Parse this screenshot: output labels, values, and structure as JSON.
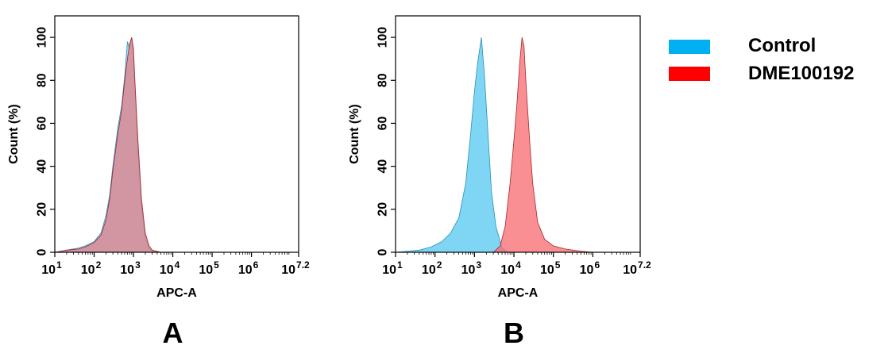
{
  "chart_data": [
    {
      "type": "area",
      "panel_label": "A",
      "xlabel": "APC-A",
      "ylabel": "Count  (%)",
      "x_scale": "log",
      "xlim": [
        10,
        15848932
      ],
      "ylim": [
        0,
        110
      ],
      "x_ticks": [
        {
          "value": 10,
          "base": "10",
          "exp": "1"
        },
        {
          "value": 100,
          "base": "10",
          "exp": "2"
        },
        {
          "value": 1000,
          "base": "10",
          "exp": "3"
        },
        {
          "value": 10000,
          "base": "10",
          "exp": "4"
        },
        {
          "value": 100000,
          "base": "10",
          "exp": "5"
        },
        {
          "value": 1000000,
          "base": "10",
          "exp": "6"
        },
        {
          "value": 15848932,
          "base": "10",
          "exp": "7.2"
        }
      ],
      "y_ticks": [
        0,
        20,
        40,
        60,
        80,
        100
      ],
      "series": [
        {
          "name": "Control",
          "color": "#54C8F0",
          "x": [
            10,
            20,
            40,
            60,
            100,
            150,
            200,
            250,
            300,
            400,
            500,
            600,
            700,
            800,
            900,
            1000,
            1100,
            1300,
            1600,
            2000,
            2500,
            3000,
            5000
          ],
          "y": [
            0,
            1,
            2,
            3,
            5,
            9,
            17,
            27,
            40,
            58,
            68,
            82,
            98,
            95,
            100,
            92,
            75,
            48,
            22,
            7,
            2,
            0.5,
            0
          ]
        },
        {
          "name": "DME100192",
          "color": "#F76A6E",
          "x": [
            10,
            20,
            40,
            60,
            100,
            150,
            200,
            250,
            300,
            400,
            500,
            600,
            700,
            800,
            900,
            1000,
            1100,
            1300,
            1600,
            2000,
            2500,
            3000,
            5000
          ],
          "y": [
            0,
            1,
            1.5,
            2.5,
            4.5,
            8,
            15,
            25,
            38,
            55,
            66,
            80,
            90,
            97,
            100,
            95,
            78,
            52,
            25,
            9,
            3,
            1,
            0
          ]
        }
      ]
    },
    {
      "type": "area",
      "panel_label": "B",
      "xlabel": "APC-A",
      "ylabel": "Count  (%)",
      "x_scale": "log",
      "xlim": [
        10,
        15848932
      ],
      "ylim": [
        0,
        110
      ],
      "x_ticks": [
        {
          "value": 10,
          "base": "10",
          "exp": "1"
        },
        {
          "value": 100,
          "base": "10",
          "exp": "2"
        },
        {
          "value": 1000,
          "base": "10",
          "exp": "3"
        },
        {
          "value": 10000,
          "base": "10",
          "exp": "4"
        },
        {
          "value": 100000,
          "base": "10",
          "exp": "5"
        },
        {
          "value": 1000000,
          "base": "10",
          "exp": "6"
        },
        {
          "value": 15848932,
          "base": "10",
          "exp": "7.2"
        }
      ],
      "y_ticks": [
        0,
        20,
        40,
        60,
        80,
        100
      ],
      "series": [
        {
          "name": "Control",
          "color": "#54C8F0",
          "x": [
            10,
            20,
            40,
            80,
            150,
            250,
            400,
            600,
            800,
            1000,
            1200,
            1500,
            1800,
            2200,
            2700,
            3500,
            5000,
            7000
          ],
          "y": [
            0,
            0.5,
            1,
            2.5,
            5,
            9,
            16,
            32,
            55,
            75,
            88,
            100,
            82,
            55,
            28,
            12,
            2,
            0
          ]
        },
        {
          "name": "DME100192",
          "color": "#F76A6E",
          "x": [
            3000,
            4500,
            6000,
            8000,
            10000,
            12000,
            14000,
            16000,
            18000,
            20000,
            25000,
            30000,
            40000,
            60000,
            100000,
            200000,
            500000,
            1000000
          ],
          "y": [
            0,
            3,
            12,
            32,
            52,
            70,
            88,
            100,
            96,
            80,
            52,
            32,
            14,
            6,
            3,
            1.5,
            0.5,
            0
          ]
        }
      ]
    }
  ],
  "legend": {
    "items": [
      {
        "label": "Control",
        "color": "#00B0F0"
      },
      {
        "label": "DME100192",
        "color": "#FF0000"
      }
    ]
  }
}
